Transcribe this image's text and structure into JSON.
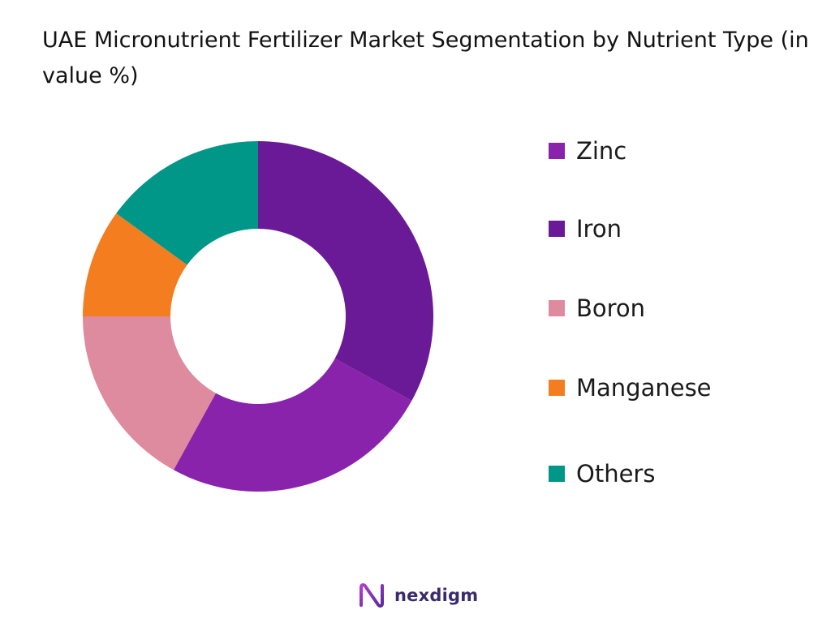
{
  "title": "UAE Micronutrient Fertilizer Market Segmentation by Nutrient Type (in value %)",
  "chart_data": {
    "type": "pie",
    "style": "donut",
    "categories": [
      "Zinc",
      "Iron",
      "Boron",
      "Manganese",
      "Others"
    ],
    "values": [
      25,
      33,
      17,
      10,
      15
    ],
    "colors": [
      "#8a23ab",
      "#6a1a97",
      "#de8a9f",
      "#f47d20",
      "#009688"
    ],
    "legend_position": "right",
    "slice_order_clockwise_from_top": [
      "Iron",
      "Zinc",
      "Boron",
      "Manganese",
      "Others"
    ]
  },
  "brand": {
    "name": "nexdigm",
    "icon": "nexdigm-logo-icon"
  }
}
